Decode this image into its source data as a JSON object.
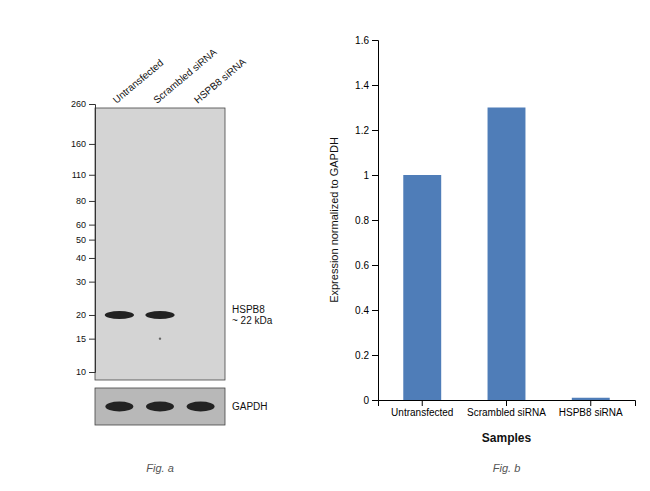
{
  "chart_data": [
    {
      "type": "western_blot",
      "categories": [
        "Untransfected",
        "Scrambled siRNA",
        "HSPB8 siRNA"
      ],
      "yticks": [
        260,
        160,
        110,
        80,
        60,
        50,
        40,
        30,
        20,
        15,
        10
      ],
      "ylim": [
        10,
        260
      ],
      "log": "y",
      "color": "#222222",
      "annotations": [
        "HSPB8\n~ 22 kDa",
        "GAPDH",
        "Fig. a"
      ]
    },
    {
      "type": "bar",
      "categories": [
        "Untransfected",
        "Scrambled siRNA",
        "HSPB8 siRNA"
      ],
      "values": [
        1.0,
        1.3,
        0.01
      ],
      "color": "#4f7db8",
      "xlabel": "Samples",
      "ylabel": "Expression normalized to GAPDH",
      "ylim": [
        0,
        1.6
      ],
      "yticks": [
        0,
        0.2,
        0.4,
        0.6,
        0.8,
        1.0,
        1.2,
        1.4,
        1.6
      ],
      "grid": false,
      "annotations": [
        "Fig. b"
      ]
    }
  ]
}
